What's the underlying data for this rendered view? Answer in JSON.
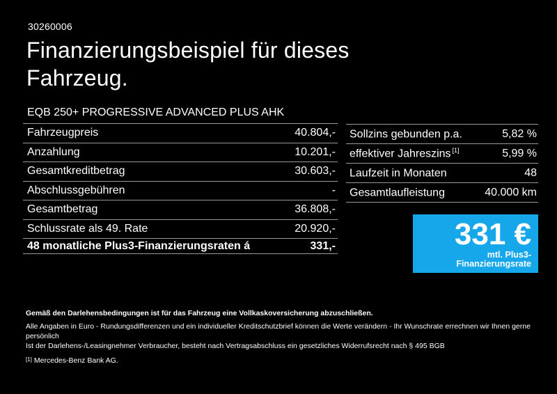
{
  "page": {
    "doc_number": "30260006",
    "title_line1": "Finanzierungsbeispiel für dieses",
    "title_line2": "Fahrzeug.",
    "vehicle_model": "EQB 250+ PROGRESSIVE ADVANCED PLUS AHK"
  },
  "colors": {
    "background": "#000000",
    "text": "#ffffff",
    "divider": "#9b9b9b",
    "accent_blue": "#16A7EA"
  },
  "left_table": {
    "rows": [
      {
        "label": "Fahrzeugpreis",
        "value": "40.804,-"
      },
      {
        "label": "Anzahlung",
        "value": "10.201,-"
      },
      {
        "label": "Gesamtkreditbetrag",
        "value": "30.603,-"
      },
      {
        "label": "Abschlussgebühren",
        "value": "-"
      },
      {
        "label": "Gesamtbetrag",
        "value": "36.808,-"
      },
      {
        "label": "Schlussrate als 49. Rate",
        "value": "20.920,-"
      },
      {
        "label": "48 monatliche Plus3-Finanzierungsraten á",
        "value": "331,-"
      }
    ]
  },
  "right_table": {
    "rows": [
      {
        "label": "Sollzins gebunden p.a.",
        "sup": "",
        "value": "5,82 %"
      },
      {
        "label": "effektiver Jahreszins",
        "sup": "[1]",
        "value": "5,99 %"
      },
      {
        "label": "Laufzeit in Monaten",
        "sup": "",
        "value": "48"
      },
      {
        "label": "Gesamtlaufleistung",
        "sup": "",
        "value": "40.000 km"
      }
    ]
  },
  "rate_box": {
    "amount": "331 €",
    "caption": "mtl. Plus3-Finanzierungsrate"
  },
  "fine_print": {
    "line_bold": "Gemäß den Darlehensbedingungen ist für das Fahrzeug eine Vollkaskoversicherung abzuschließen.",
    "line2": "Alle Angaben in Euro - Rundungsdifferenzen und ein individueller Kreditschutzbrief können die Werte verändern - Ihr Wunschrate errechnen wir Ihnen gerne persönlich",
    "line3": "Ist der Darlehens-/Leasingnehmer Verbraucher, besteht nach Vertragsabschluss ein gesetzliches Widerrufsrecht nach § 495 BGB",
    "footnote_marker": "[1]",
    "footnote_text": "Mercedes-Benz Bank AG."
  }
}
